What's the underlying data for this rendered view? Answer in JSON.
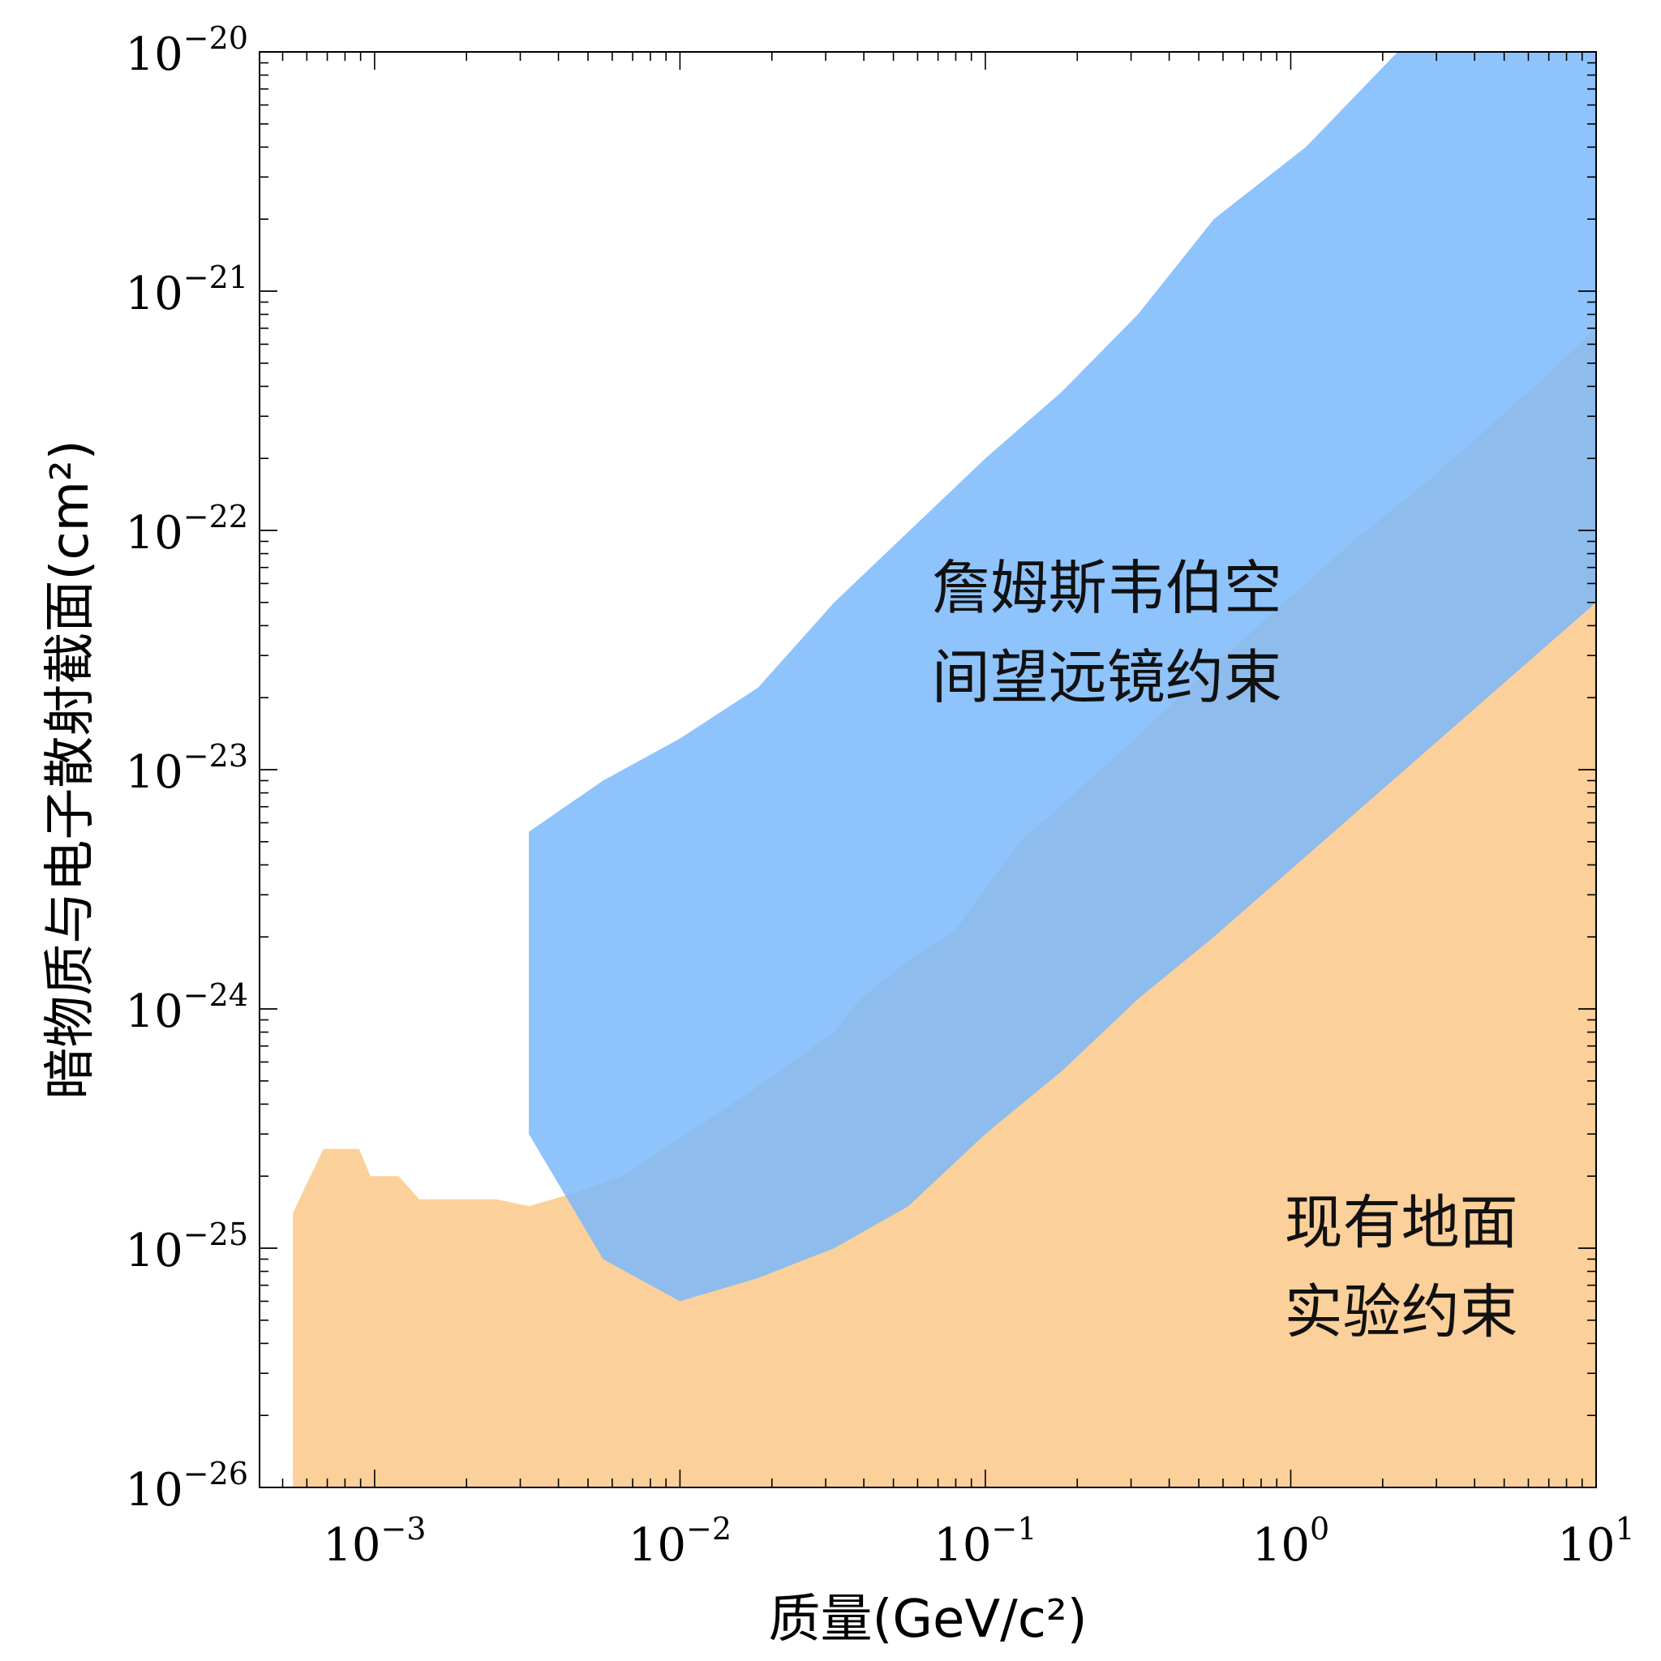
{
  "chart_data": {
    "type": "area",
    "title": "",
    "xlabel": "质量(GeV/c²)",
    "ylabel": "暗物质与电子散射截面(cm²)",
    "xscale": "log",
    "yscale": "log",
    "xlim": [
      0.00042,
      10
    ],
    "ylim": [
      1e-26,
      1e-20
    ],
    "grid": false,
    "x_ticks": [
      {
        "value": 0.001,
        "base": "10",
        "exp": "−3"
      },
      {
        "value": 0.01,
        "base": "10",
        "exp": "−2"
      },
      {
        "value": 0.1,
        "base": "10",
        "exp": "−1"
      },
      {
        "value": 1,
        "base": "10",
        "exp": "0"
      },
      {
        "value": 10,
        "base": "10",
        "exp": "1"
      }
    ],
    "y_ticks": [
      {
        "value": 1e-26,
        "base": "10",
        "exp": "−26"
      },
      {
        "value": 1e-25,
        "base": "10",
        "exp": "−25"
      },
      {
        "value": 1e-24,
        "base": "10",
        "exp": "−24"
      },
      {
        "value": 1e-23,
        "base": "10",
        "exp": "−23"
      },
      {
        "value": 1e-22,
        "base": "10",
        "exp": "−22"
      },
      {
        "value": 1e-21,
        "base": "10",
        "exp": "−21"
      },
      {
        "value": 1e-20,
        "base": "10",
        "exp": "−20"
      }
    ],
    "series": [
      {
        "name": "现有地面实验约束",
        "label_lines": [
          "现有地面",
          "实验约束"
        ],
        "color": "#fcd09a",
        "opacity": 1,
        "label_at": {
          "x": 2.3,
          "y": 8e-26
        },
        "points": [
          [
            0.00054,
            1e-26
          ],
          [
            0.00054,
            1.4e-25
          ],
          [
            0.00058,
            1.7e-25
          ],
          [
            0.00068,
            2.6e-25
          ],
          [
            0.00089,
            2.6e-25
          ],
          [
            0.00097,
            2e-25
          ],
          [
            0.0012,
            2e-25
          ],
          [
            0.0014,
            1.6e-25
          ],
          [
            0.0025,
            1.6e-25
          ],
          [
            0.0032,
            1.5e-25
          ],
          [
            0.0045,
            1.7e-25
          ],
          [
            0.0065,
            2e-25
          ],
          [
            0.017,
            4.5e-25
          ],
          [
            0.032,
            8e-25
          ],
          [
            0.039,
            1.1e-24
          ],
          [
            0.056,
            1.6e-24
          ],
          [
            0.079,
            2.1e-24
          ],
          [
            0.089,
            2.6e-24
          ],
          [
            0.13,
            5e-24
          ],
          [
            0.28,
            1.2e-23
          ],
          [
            0.5,
            2.4e-23
          ],
          [
            1.12,
            6e-23
          ],
          [
            1.6,
            9e-23
          ],
          [
            2.8,
            1.6e-22
          ],
          [
            6.3,
            4e-22
          ],
          [
            10,
            7e-22
          ],
          [
            10,
            1e-26
          ]
        ]
      },
      {
        "name": "詹姆斯韦伯空间望远镜约束",
        "label_lines": [
          "詹姆斯韦伯空",
          "间望远镜约束"
        ],
        "color": "#7ab8fc",
        "opacity": 0.85,
        "label_at": {
          "x": 0.25,
          "y": 3.6e-23
        },
        "points": [
          [
            0.0032,
            5.5e-24
          ],
          [
            0.0056,
            9e-24
          ],
          [
            0.01,
            1.35e-23
          ],
          [
            0.018,
            2.2e-23
          ],
          [
            0.032,
            5e-23
          ],
          [
            0.1,
            2e-22
          ],
          [
            0.178,
            3.8e-22
          ],
          [
            0.316,
            8e-22
          ],
          [
            0.56,
            2e-21
          ],
          [
            1.12,
            4e-21
          ],
          [
            2.24,
            1e-20
          ],
          [
            10,
            1e-20
          ],
          [
            10,
            5e-23
          ],
          [
            0.56,
            2e-24
          ],
          [
            0.316,
            1.1e-24
          ],
          [
            0.178,
            5.5e-25
          ],
          [
            0.1,
            3e-25
          ],
          [
            0.056,
            1.5e-25
          ],
          [
            0.032,
            1e-25
          ],
          [
            0.018,
            7.5e-26
          ],
          [
            0.01,
            6e-26
          ],
          [
            0.0056,
            9e-26
          ],
          [
            0.0032,
            3e-25
          ]
        ]
      }
    ]
  }
}
